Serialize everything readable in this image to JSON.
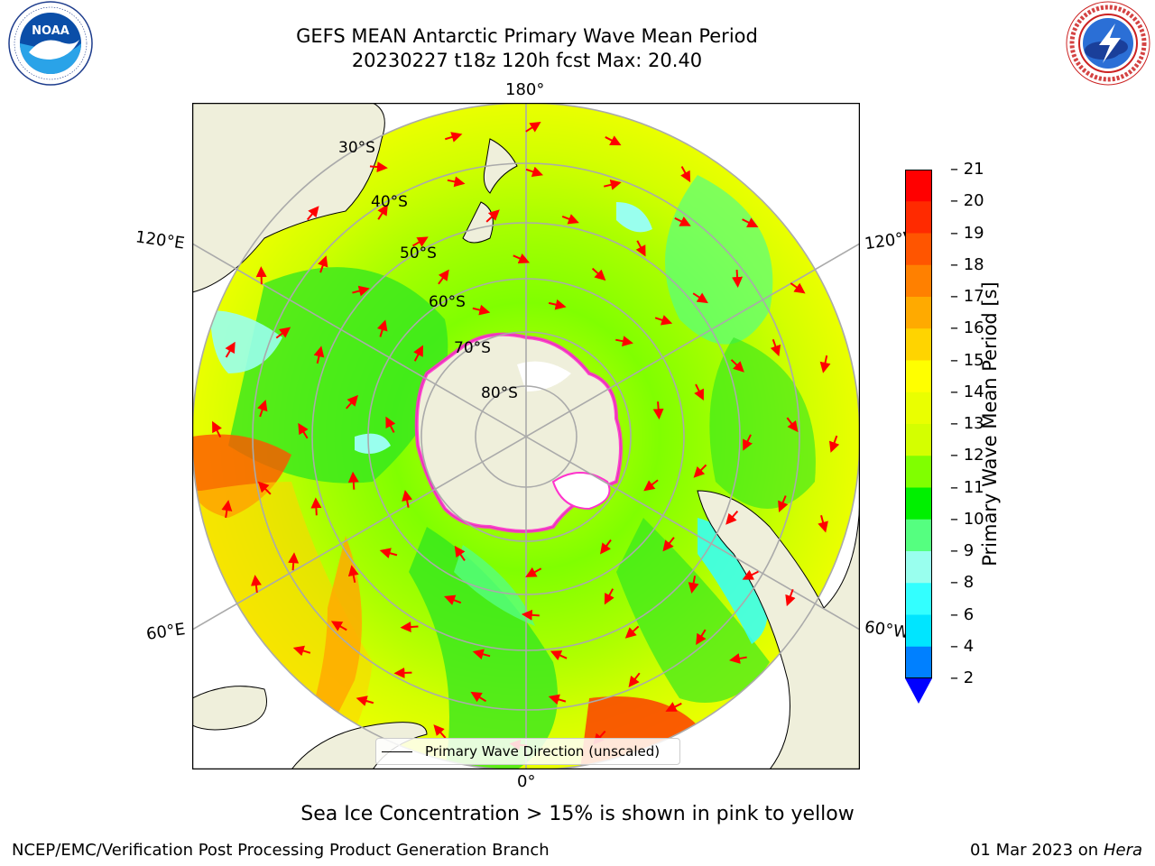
{
  "header": {
    "title_line1": "GEFS MEAN Antarctic Primary Wave Mean Period",
    "title_line2": "20230227 t18z 120h fcst   Max: 20.40"
  },
  "logos": {
    "left": {
      "name": "NOAA",
      "ring_text": "NATIONAL OCEANIC AND ATMOSPHERIC ADMINISTRATION · U.S. DEPARTMENT OF COMMERCE"
    },
    "right": {
      "name": "NATIONAL WEATHER SERVICE"
    }
  },
  "map": {
    "projection": "south-polar-stereographic",
    "longitude_labels": {
      "top": "180°",
      "bottom": "0°",
      "upper_left": "120°E",
      "upper_right": "120°W",
      "lower_left": "60°E",
      "lower_right": "60°W"
    },
    "latitude_labels": [
      "30°S",
      "40°S",
      "50°S",
      "60°S",
      "70°S",
      "80°S"
    ],
    "colors": {
      "land": "#efefdb",
      "ice_edge": "#ff33cc",
      "arrow": "#ff0000",
      "grid": "#aaaaaa"
    },
    "arrow_style": "red arrows showing primary wave direction (unscaled)"
  },
  "colorbar": {
    "label": "Primary Wave Mean Period [s]",
    "ticks": [
      "21",
      "20",
      "19",
      "18",
      "17",
      "16",
      "15",
      "14",
      "13",
      "12",
      "11",
      "10",
      "9",
      "8",
      "6",
      "4",
      "2"
    ],
    "bands_top_to_bottom": [
      "#ff0000",
      "#ff2a00",
      "#ff5500",
      "#ff8000",
      "#ffaa00",
      "#ffd400",
      "#ffff00",
      "#eaff00",
      "#d4ff00",
      "#80ff00",
      "#00f000",
      "#55ff80",
      "#99ffee",
      "#33ffff",
      "#00e5ff",
      "#0080ff"
    ],
    "extend_color": "#0000ff"
  },
  "legend": {
    "label": "Primary Wave Direction (unscaled)"
  },
  "caption": "Sea Ice Concentration > 15% is shown in pink to yellow",
  "footer": {
    "left": "NCEP/EMC/Verification Post Processing Product Generation Branch",
    "right_date": "01 Mar 2023 on",
    "right_host": "Hera"
  }
}
